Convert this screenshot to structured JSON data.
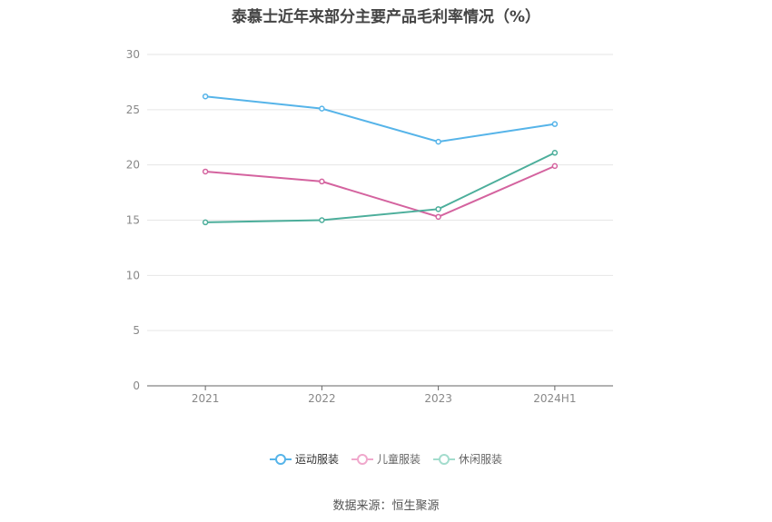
{
  "chart_data": {
    "type": "line",
    "title": "泰慕士近年来部分主要产品毛利率情况（%）",
    "categories": [
      "2021",
      "2022",
      "2023",
      "2024H1"
    ],
    "series": [
      {
        "name": "运动服装",
        "values": [
          26.2,
          25.1,
          22.1,
          23.7
        ],
        "color": "#56b4e9"
      },
      {
        "name": "儿童服装",
        "values": [
          19.4,
          18.5,
          15.3,
          19.9
        ],
        "color": "#d4639f"
      },
      {
        "name": "休闲服装",
        "values": [
          14.8,
          15.0,
          16.0,
          21.1
        ],
        "color": "#4cae9b"
      }
    ],
    "ylim": [
      0,
      30
    ],
    "yticks": [
      "0",
      "5",
      "10",
      "15",
      "20",
      "25",
      "30"
    ],
    "grid": true,
    "legend": "bottom-center"
  },
  "legend_colors": {
    "inactive_運動": "#56b4e9",
    "inactive_kids": "#f0a8cc",
    "inactive_casual": "#a3dccd"
  },
  "source": "数据来源：恒生聚源"
}
